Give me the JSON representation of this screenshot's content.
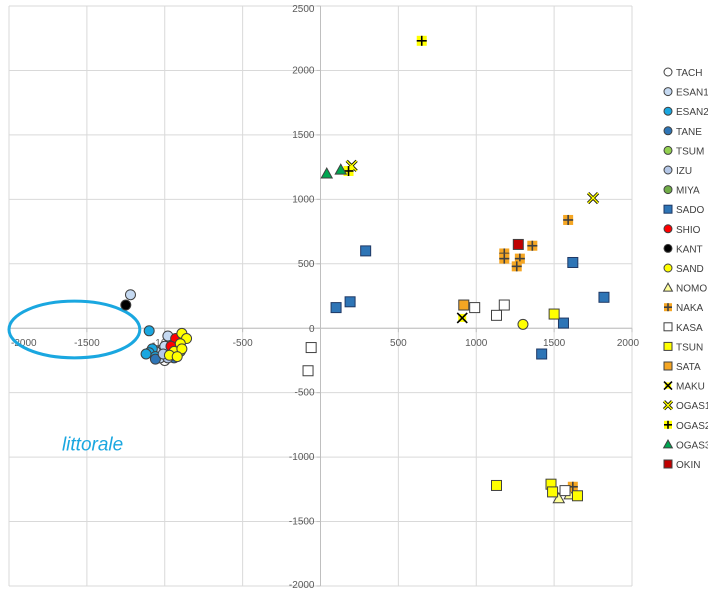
{
  "chart_data": {
    "type": "scatter",
    "title": "",
    "xlabel": "",
    "ylabel": "",
    "xlim": [
      -2000,
      2000
    ],
    "ylim": [
      -2000,
      2500
    ],
    "x_ticks": [
      -2000,
      -1500,
      -1000,
      -500,
      0,
      500,
      1000,
      1500,
      2000
    ],
    "y_ticks": [
      -2000,
      -1500,
      -1000,
      -500,
      0,
      500,
      1000,
      1500,
      2000,
      2500
    ],
    "grid": true,
    "legend_position": "right",
    "annotation": {
      "text": "littorale",
      "ellipse_color": "#1aa7e0",
      "ellipse_center": [
        -1580,
        -10
      ],
      "ellipse_radius": [
        420,
        220
      ],
      "text_anchor": [
        -1660,
        -950
      ]
    },
    "series": [
      {
        "name": "TACH",
        "marker": "circle",
        "fill": "#ffffff",
        "stroke": "#404040",
        "points": [
          [
            -1020,
            -170
          ],
          [
            -960,
            -220
          ],
          [
            -1000,
            -250
          ]
        ]
      },
      {
        "name": "ESAN1",
        "marker": "circle",
        "fill": "#c5d9f1",
        "stroke": "#404040",
        "points": [
          [
            -1220,
            260
          ],
          [
            -980,
            -60
          ],
          [
            -1000,
            -140
          ],
          [
            -960,
            -200
          ],
          [
            -1030,
            -230
          ],
          [
            -940,
            -180
          ],
          [
            -1060,
            -180
          ]
        ]
      },
      {
        "name": "ESAN2",
        "marker": "circle",
        "fill": "#1aa7e0",
        "stroke": "#404040",
        "points": [
          [
            -1100,
            -20
          ],
          [
            -1080,
            -160
          ],
          [
            -1100,
            -190
          ],
          [
            -1060,
            -220
          ],
          [
            -1120,
            -200
          ]
        ]
      },
      {
        "name": "TANE",
        "marker": "circle",
        "fill": "#2e75b6",
        "stroke": "#404040",
        "points": [
          [
            -1060,
            -240
          ],
          [
            -940,
            -230
          ]
        ]
      },
      {
        "name": "TSUM",
        "marker": "circle",
        "fill": "#92d050",
        "stroke": "#404040",
        "points": [
          [
            -920,
            -150
          ]
        ]
      },
      {
        "name": "IZU",
        "marker": "circle",
        "fill": "#b4c7e7",
        "stroke": "#404040",
        "points": [
          [
            -980,
            -230
          ],
          [
            -1010,
            -200
          ]
        ]
      },
      {
        "name": "MIYA",
        "marker": "circle",
        "fill": "#70ad47",
        "stroke": "#404040",
        "points": [
          [
            -900,
            -180
          ]
        ]
      },
      {
        "name": "SADO",
        "marker": "square",
        "fill": "#2e75b6",
        "stroke": "#1f3864",
        "points": [
          [
            290,
            600
          ],
          [
            190,
            205
          ],
          [
            100,
            160
          ],
          [
            1620,
            510
          ],
          [
            1820,
            240
          ],
          [
            1560,
            40
          ],
          [
            1420,
            -200
          ]
        ]
      },
      {
        "name": "SHIO",
        "marker": "circle",
        "fill": "#ff0000",
        "stroke": "#404040",
        "points": [
          [
            -930,
            -80
          ],
          [
            -960,
            -140
          ]
        ]
      },
      {
        "name": "KANT",
        "marker": "circle",
        "fill": "#000000",
        "stroke": "#404040",
        "points": [
          [
            -1250,
            180
          ]
        ]
      },
      {
        "name": "SAND",
        "marker": "circle",
        "fill": "#ffff00",
        "stroke": "#404040",
        "points": [
          [
            -890,
            -40
          ],
          [
            -860,
            -80
          ],
          [
            -900,
            -120
          ],
          [
            -940,
            -180
          ],
          [
            -890,
            -160
          ],
          [
            -970,
            -210
          ],
          [
            -920,
            -220
          ],
          [
            1300,
            30
          ]
        ]
      },
      {
        "name": "NOMO",
        "marker": "triangle",
        "fill": "#ffff99",
        "stroke": "#404040",
        "points": [
          [
            1530,
            -1320
          ],
          [
            1600,
            -1290
          ]
        ]
      },
      {
        "name": "NAKA",
        "marker": "plus",
        "fill": "#f5a623",
        "stroke": "#404040",
        "points": [
          [
            1590,
            840
          ],
          [
            1360,
            640
          ],
          [
            1180,
            580
          ],
          [
            1180,
            540
          ],
          [
            1280,
            540
          ],
          [
            1260,
            480
          ],
          [
            1620,
            -1230
          ]
        ]
      },
      {
        "name": "KASA",
        "marker": "square",
        "fill": "#ffffff",
        "stroke": "#404040",
        "points": [
          [
            -60,
            -150
          ],
          [
            -80,
            -330
          ],
          [
            990,
            160
          ],
          [
            1180,
            180
          ],
          [
            1130,
            100
          ],
          [
            1570,
            -1260
          ]
        ]
      },
      {
        "name": "TSUN",
        "marker": "square",
        "fill": "#ffff00",
        "stroke": "#404040",
        "points": [
          [
            1500,
            110
          ],
          [
            1130,
            -1220
          ],
          [
            1480,
            -1210
          ],
          [
            1490,
            -1270
          ],
          [
            1650,
            -1300
          ]
        ]
      },
      {
        "name": "SATA",
        "marker": "square",
        "fill": "#f5a623",
        "stroke": "#404040",
        "points": [
          [
            920,
            180
          ]
        ]
      },
      {
        "name": "MAKU",
        "marker": "asterisk",
        "fill": "#ffff00",
        "stroke": "#000000",
        "points": [
          [
            910,
            80
          ]
        ]
      },
      {
        "name": "OGAS1",
        "marker": "cross",
        "fill": "#ffff00",
        "stroke": "#000000",
        "points": [
          [
            200,
            1260
          ],
          [
            1750,
            1010
          ]
        ]
      },
      {
        "name": "OGAS2",
        "marker": "plus",
        "fill": "#ffff00",
        "stroke": "#000000",
        "points": [
          [
            650,
            2230
          ],
          [
            180,
            1220
          ]
        ]
      },
      {
        "name": "OGAS3",
        "marker": "triangle",
        "fill": "#00a651",
        "stroke": "#404040",
        "points": [
          [
            40,
            1200
          ],
          [
            130,
            1230
          ]
        ]
      },
      {
        "name": "OKIN",
        "marker": "square",
        "fill": "#c00000",
        "stroke": "#404040",
        "points": [
          [
            1270,
            650
          ]
        ]
      }
    ]
  }
}
